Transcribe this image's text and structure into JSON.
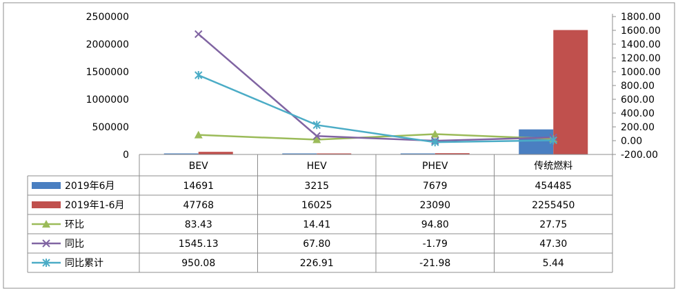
{
  "chart_data": {
    "type": "bar",
    "categories": [
      "BEV",
      "HEV",
      "PHEV",
      "传统燃料"
    ],
    "y_left": {
      "ylim": [
        0,
        2500000
      ],
      "ticks": [
        "2500000",
        "2000000",
        "1500000",
        "1000000",
        "500000",
        "0"
      ]
    },
    "y_right": {
      "ylim": [
        -200,
        1800
      ],
      "ticks": [
        "1800.00",
        "1600.00",
        "1400.00",
        "1200.00",
        "1000.00",
        "800.00",
        "600.00",
        "400.00",
        "200.00",
        "0.00",
        "-200.00"
      ]
    },
    "series": [
      {
        "name": "2019年6月",
        "kind": "bar",
        "axis": "left",
        "color": "#4a7fc1",
        "marker": "square",
        "values": [
          14691,
          3215,
          7679,
          454485
        ],
        "labels": [
          "14691",
          "3215",
          "7679",
          "454485"
        ]
      },
      {
        "name": "2019年1-6月",
        "kind": "bar",
        "axis": "left",
        "color": "#c0504d",
        "marker": "square",
        "values": [
          47768,
          16025,
          23090,
          2255450
        ],
        "labels": [
          "47768",
          "16025",
          "23090",
          "2255450"
        ]
      },
      {
        "name": "环比",
        "kind": "line",
        "axis": "right",
        "color": "#9bbb59",
        "marker": "triangle",
        "values": [
          83.43,
          14.41,
          94.8,
          27.75
        ],
        "labels": [
          "83.43",
          "14.41",
          "94.80",
          "27.75"
        ]
      },
      {
        "name": "同比",
        "kind": "line",
        "axis": "right",
        "color": "#8064a2",
        "marker": "x",
        "values": [
          1545.13,
          67.8,
          -1.79,
          47.3
        ],
        "labels": [
          "1545.13",
          "67.80",
          "-1.79",
          "47.30"
        ]
      },
      {
        "name": "同比累计",
        "kind": "line",
        "axis": "right",
        "color": "#4bacc6",
        "marker": "star",
        "values": [
          950.08,
          226.91,
          -21.98,
          5.44
        ],
        "labels": [
          "950.08",
          "226.91",
          "-21.98",
          "5.44"
        ]
      }
    ]
  }
}
